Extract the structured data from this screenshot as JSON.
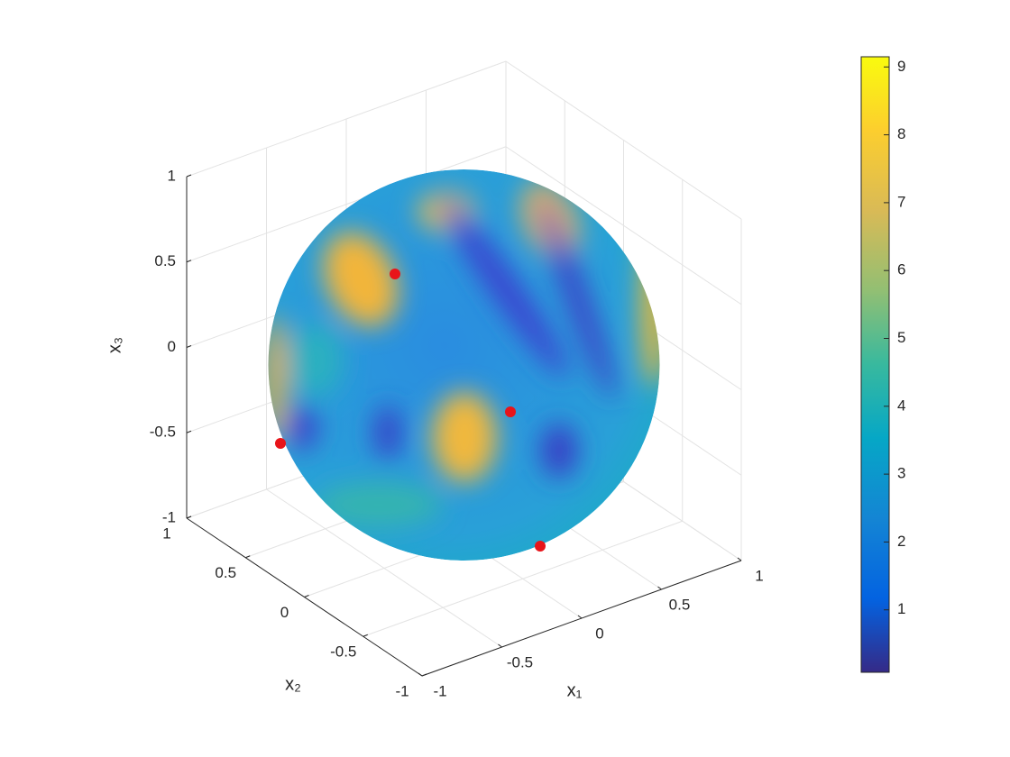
{
  "chart_data": {
    "type": "sphere3d",
    "xlabel": "x₁",
    "ylabel": "x₂",
    "zlabel": "x₃",
    "xlim": [
      -1,
      1
    ],
    "ylim": [
      -1,
      1
    ],
    "zlim": [
      -1,
      1
    ],
    "xticks": [
      -1,
      -0.5,
      0,
      0.5,
      1
    ],
    "yticks": [
      -1,
      -0.5,
      0,
      0.5,
      1
    ],
    "zticks": [
      -1,
      -0.5,
      0,
      0.5,
      1
    ],
    "grid": true,
    "colormap": "parula",
    "clim": [
      0.08,
      9.15
    ],
    "cticks": [
      1,
      2,
      3,
      4,
      5,
      6,
      7,
      8,
      9
    ]
  }
}
